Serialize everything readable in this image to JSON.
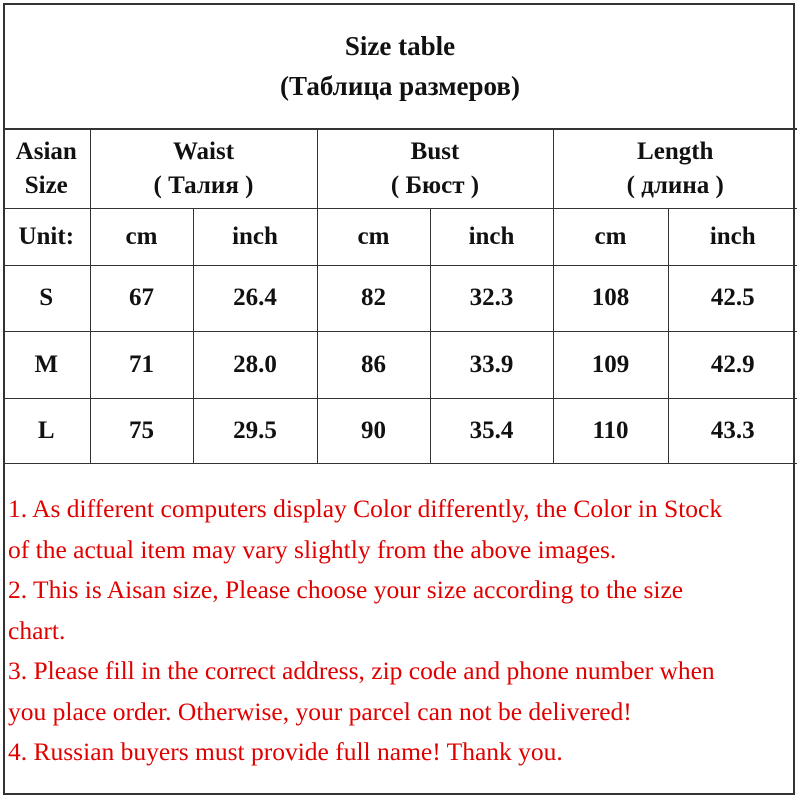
{
  "title": {
    "line1": "Size table",
    "line2": "(Таблица размеров)"
  },
  "header": {
    "size": {
      "line1": "Asian",
      "line2": "Size"
    },
    "waist": {
      "line1": "Waist",
      "line2": "( Талия )"
    },
    "bust": {
      "line1": "Bust",
      "line2": "( Бюст )"
    },
    "length": {
      "line1": "Length",
      "line2": "( длина )"
    }
  },
  "units": [
    "Unit:",
    "cm",
    "inch",
    "cm",
    "inch",
    "cm",
    "inch"
  ],
  "rows": [
    [
      "S",
      "67",
      "26.4",
      "82",
      "32.3",
      "108",
      "42.5"
    ],
    [
      "M",
      "71",
      "28.0",
      "86",
      "33.9",
      "109",
      "42.9"
    ],
    [
      "L",
      "75",
      "29.5",
      "90",
      "35.4",
      "110",
      "43.3"
    ]
  ],
  "notes": [
    "1. As different computers display Color differently, the Color in Stock",
    "of the actual item may vary slightly from the above images.",
    "2. This is Aisan size, Please choose your size according to the size",
    "chart.",
    "3. Please fill in the correct address, zip code and phone number when",
    "you place order. Otherwise, your parcel can not be delivered!",
    "4. Russian buyers must provide full name! Thank you."
  ],
  "colors": {
    "notes_text": "#e00000",
    "border": "#333333"
  }
}
